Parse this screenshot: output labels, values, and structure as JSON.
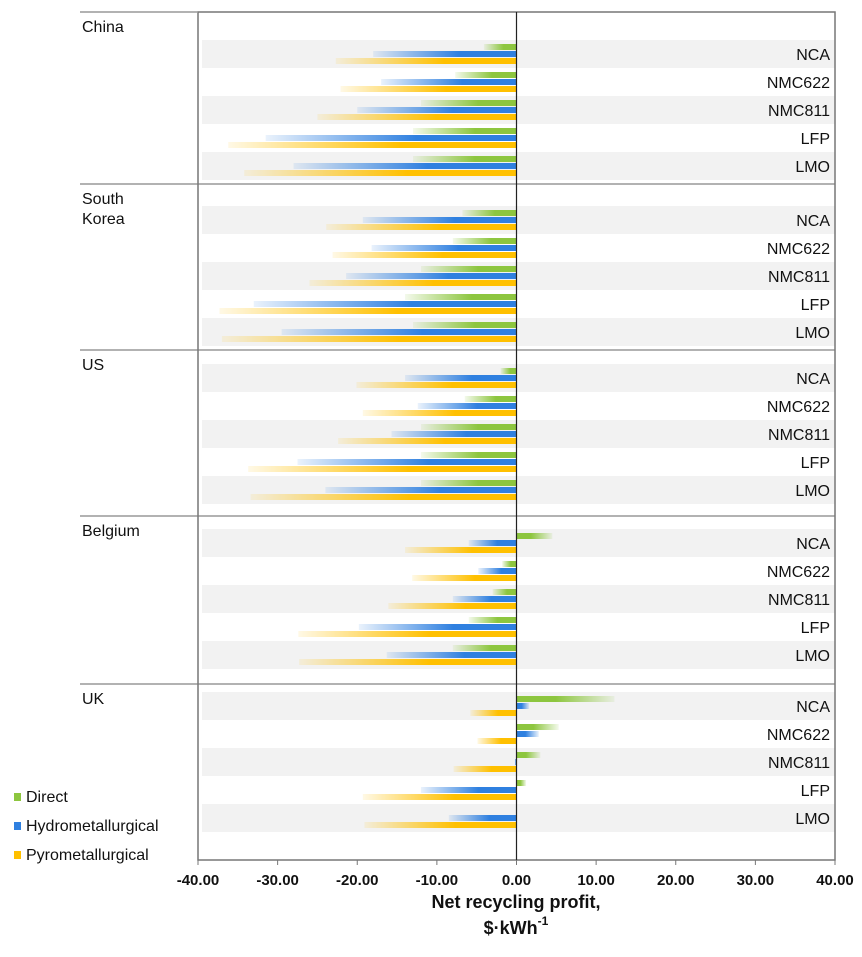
{
  "chart_data": {
    "type": "bar",
    "orientation": "horizontal",
    "xlabel": "Net recycling profit,",
    "xunit": "$·kWh",
    "xunit_exp": "-1",
    "xlim": [
      -40,
      40
    ],
    "xticks": [
      {
        "value": -40,
        "label": "-40.00"
      },
      {
        "value": -30,
        "label": "-30.00"
      },
      {
        "value": -20,
        "label": "-20.00"
      },
      {
        "value": -10,
        "label": "-10.00"
      },
      {
        "value": 0,
        "label": "0.00"
      },
      {
        "value": 10,
        "label": "10.00"
      },
      {
        "value": 20,
        "label": "20.00"
      },
      {
        "value": 30,
        "label": "30.00"
      },
      {
        "value": 40,
        "label": "40.00"
      }
    ],
    "categories": [
      "NCA",
      "NMC622",
      "NMC811",
      "LFP",
      "LMO"
    ],
    "legend": "bottom-left",
    "series": [
      {
        "name": "Direct",
        "color": "#8dc63f"
      },
      {
        "name": "Hydrometallurgical",
        "color": "#2f80e0"
      },
      {
        "name": "Pyrometallurgical",
        "color": "#ffc000"
      }
    ],
    "panels": [
      {
        "title": "China",
        "values": [
          [
            -4.1,
            -7.7,
            -12,
            -13,
            -13
          ],
          [
            -18,
            -17,
            -20,
            -31.5,
            -28
          ],
          [
            -22.7,
            -22.1,
            -25,
            -36.2,
            -34.2
          ]
        ]
      },
      {
        "title": "South\nKorea",
        "values": [
          [
            -6.8,
            -8,
            -12,
            -14,
            -13
          ],
          [
            -19.3,
            -18.2,
            -21.4,
            -33,
            -29.5
          ],
          [
            -23.9,
            -23.1,
            -26,
            -37.3,
            -37
          ]
        ]
      },
      {
        "title": "US",
        "values": [
          [
            -2,
            -6.5,
            -12,
            -12,
            -12
          ],
          [
            -14,
            -12.4,
            -15.7,
            -27.5,
            -24
          ],
          [
            -20.1,
            -19.3,
            -22.4,
            -33.7,
            -33.4
          ]
        ]
      },
      {
        "title": "Belgium",
        "values": [
          [
            4.5,
            -1.8,
            -3,
            -6,
            -8
          ],
          [
            -6,
            -4.8,
            -8,
            -19.8,
            -16.3
          ],
          [
            -14,
            -13.1,
            -16.1,
            -27.4,
            -27.3
          ]
        ]
      },
      {
        "title": "UK",
        "values": [
          [
            12.3,
            5.3,
            3,
            1.2,
            0
          ],
          [
            1.6,
            2.8,
            -0.2,
            -12,
            -8.5
          ],
          [
            -5.8,
            -4.9,
            -7.9,
            -19.3,
            -19.1
          ]
        ]
      }
    ]
  }
}
